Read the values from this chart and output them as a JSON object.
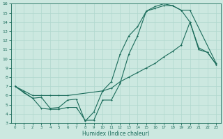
{
  "xlabel": "Humidex (Indice chaleur)",
  "xlim": [
    -0.5,
    23.5
  ],
  "ylim": [
    3,
    16
  ],
  "xticks": [
    0,
    1,
    2,
    3,
    4,
    5,
    6,
    7,
    8,
    9,
    10,
    11,
    12,
    13,
    14,
    15,
    16,
    17,
    18,
    19,
    20,
    21,
    22,
    23
  ],
  "yticks": [
    3,
    4,
    5,
    6,
    7,
    8,
    9,
    10,
    11,
    12,
    13,
    14,
    15,
    16
  ],
  "bg_color": "#cce8e0",
  "line_color": "#1a6b5a",
  "grid_color": "#b0d8ce",
  "curve1_x": [
    0,
    1,
    2,
    3,
    4,
    5,
    6,
    10,
    11,
    12,
    13,
    14,
    15,
    16,
    17,
    18,
    19,
    20,
    23
  ],
  "curve1_y": [
    7.0,
    6.5,
    6.0,
    6.0,
    6.0,
    6.0,
    6.0,
    6.5,
    7.5,
    10.5,
    12.5,
    13.5,
    15.2,
    15.5,
    15.8,
    15.8,
    15.3,
    15.3,
    9.5
  ],
  "curve2_x": [
    0,
    1,
    2,
    3,
    4,
    5,
    6,
    7,
    8,
    9,
    10,
    11,
    12,
    13,
    14,
    15,
    16,
    17,
    18,
    19,
    20,
    21,
    22,
    23
  ],
  "curve2_y": [
    7.0,
    6.3,
    5.7,
    4.6,
    4.5,
    4.5,
    4.7,
    4.7,
    3.3,
    3.3,
    5.5,
    5.5,
    7.3,
    10.5,
    12.5,
    15.2,
    15.7,
    16.0,
    15.8,
    15.3,
    14.0,
    11.2,
    10.7,
    9.4
  ],
  "curve3_x": [
    0,
    2,
    3,
    4,
    5,
    6,
    7,
    8,
    9,
    10,
    11,
    12,
    13,
    14,
    15,
    16,
    17,
    18,
    19,
    20,
    21,
    22,
    23
  ],
  "curve3_y": [
    7.0,
    5.7,
    5.8,
    4.6,
    4.7,
    5.5,
    5.6,
    3.2,
    4.2,
    6.5,
    6.8,
    7.5,
    8.0,
    8.5,
    9.0,
    9.5,
    10.2,
    10.8,
    11.5,
    14.0,
    11.0,
    10.7,
    9.4
  ]
}
